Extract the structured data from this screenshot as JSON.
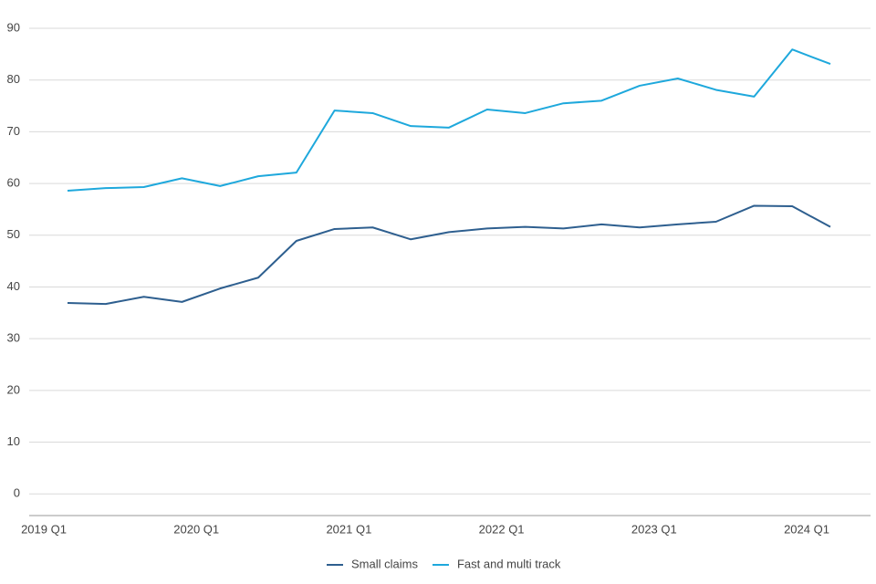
{
  "chart_data": {
    "type": "line",
    "categories": [
      "2019 Q1",
      null,
      null,
      null,
      "2020 Q1",
      null,
      null,
      null,
      "2021 Q1",
      null,
      null,
      null,
      "2022 Q1",
      null,
      null,
      null,
      "2023 Q1",
      null,
      null,
      null,
      "2024 Q1"
    ],
    "series": [
      {
        "name": "Small claims",
        "color": "#2e5f8f",
        "values": [
          36.9,
          36.7,
          38.1,
          37.1,
          39.7,
          41.8,
          48.9,
          51.2,
          51.5,
          49.2,
          50.6,
          51.3,
          51.6,
          51.3,
          52.1,
          51.5,
          52.1,
          52.6,
          55.7,
          55.6,
          51.6
        ]
      },
      {
        "name": "Fast and multi track",
        "color": "#1ea8dc",
        "values": [
          58.6,
          59.1,
          59.3,
          61.0,
          59.5,
          61.4,
          62.1,
          74.1,
          73.6,
          71.1,
          70.8,
          74.3,
          73.6,
          75.5,
          76.0,
          78.9,
          80.3,
          78.1,
          76.8,
          85.9,
          83.1
        ]
      }
    ],
    "ylim": [
      -4.2,
      90
    ],
    "yticks": [
      0,
      10,
      20,
      30,
      40,
      50,
      60,
      70,
      80,
      90
    ],
    "grid": true,
    "legend": "bottom"
  }
}
